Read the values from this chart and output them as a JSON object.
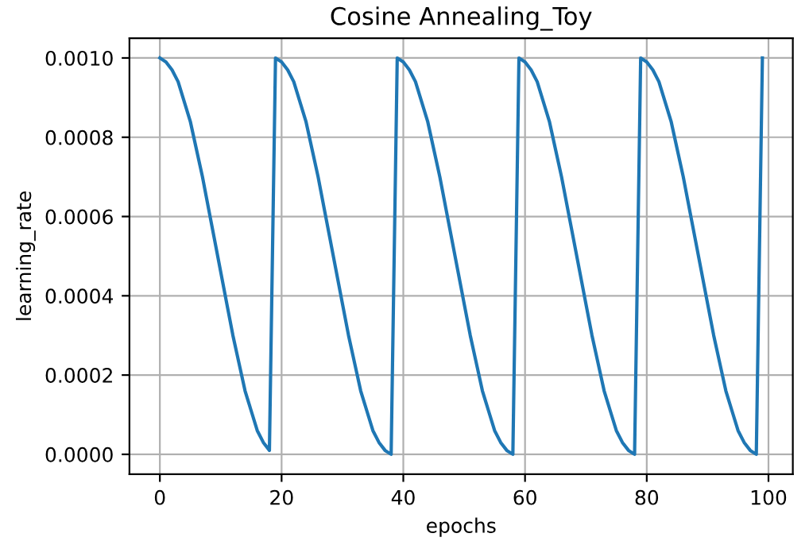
{
  "chart_data": {
    "type": "line",
    "title": "Cosine Annealing_Toy",
    "xlabel": "epochs",
    "ylabel": "learning_rate",
    "x": [
      0,
      1,
      2,
      3,
      4,
      5,
      6,
      7,
      8,
      9,
      10,
      11,
      12,
      13,
      14,
      15,
      16,
      17,
      18,
      19,
      20,
      21,
      22,
      23,
      24,
      25,
      26,
      27,
      28,
      29,
      30,
      31,
      32,
      33,
      34,
      35,
      36,
      37,
      38,
      39,
      40,
      41,
      42,
      43,
      44,
      45,
      46,
      47,
      48,
      49,
      50,
      51,
      52,
      53,
      54,
      55,
      56,
      57,
      58,
      59,
      60,
      61,
      62,
      63,
      64,
      65,
      66,
      67,
      68,
      69,
      70,
      71,
      72,
      73,
      74,
      75,
      76,
      77,
      78,
      79,
      80,
      81,
      82,
      83,
      84,
      85,
      86,
      87,
      88,
      89,
      90,
      91,
      92,
      93,
      94,
      95,
      96,
      97,
      98,
      99
    ],
    "series": [
      {
        "color": "#1f77b4",
        "values": [
          0.001,
          0.00099,
          0.00097,
          0.00094,
          0.00089,
          0.00084,
          0.00077,
          0.0007,
          0.00062,
          0.00054,
          0.00046,
          0.00038,
          0.0003,
          0.00023,
          0.00016,
          0.00011,
          6e-05,
          3e-05,
          1e-05,
          0.001,
          0.00099,
          0.00097,
          0.00094,
          0.00089,
          0.00084,
          0.00077,
          0.0007,
          0.00062,
          0.00054,
          0.00046,
          0.00038,
          0.0003,
          0.00023,
          0.00016,
          0.00011,
          6e-05,
          3e-05,
          1e-05,
          0.0,
          0.001,
          0.00099,
          0.00097,
          0.00094,
          0.00089,
          0.00084,
          0.00077,
          0.0007,
          0.00062,
          0.00054,
          0.00046,
          0.00038,
          0.0003,
          0.00023,
          0.00016,
          0.00011,
          6e-05,
          3e-05,
          1e-05,
          0.0,
          0.001,
          0.00099,
          0.00097,
          0.00094,
          0.00089,
          0.00084,
          0.00077,
          0.0007,
          0.00062,
          0.00054,
          0.00046,
          0.00038,
          0.0003,
          0.00023,
          0.00016,
          0.00011,
          6e-05,
          3e-05,
          1e-05,
          0.0,
          0.001,
          0.00099,
          0.00097,
          0.00094,
          0.00089,
          0.00084,
          0.00077,
          0.0007,
          0.00062,
          0.00054,
          0.00046,
          0.00038,
          0.0003,
          0.00023,
          0.00016,
          0.00011,
          6e-05,
          3e-05,
          1e-05,
          0.0,
          0.001
        ]
      }
    ],
    "xlim": [
      -5,
      104
    ],
    "xticks": [
      0,
      20,
      40,
      60,
      80,
      100
    ],
    "ylim": [
      -5e-05,
      0.00105
    ],
    "yticks": [
      {
        "value": 0,
        "label": "0.0000"
      },
      {
        "value": 0.0002,
        "label": "0.0002"
      },
      {
        "value": 0.0004,
        "label": "0.0004"
      },
      {
        "value": 0.0006,
        "label": "0.0006"
      },
      {
        "value": 0.0008,
        "label": "0.0008"
      },
      {
        "value": 0.001,
        "label": "0.0010"
      }
    ],
    "grid": true,
    "marker": "none",
    "line_style": "solid"
  }
}
